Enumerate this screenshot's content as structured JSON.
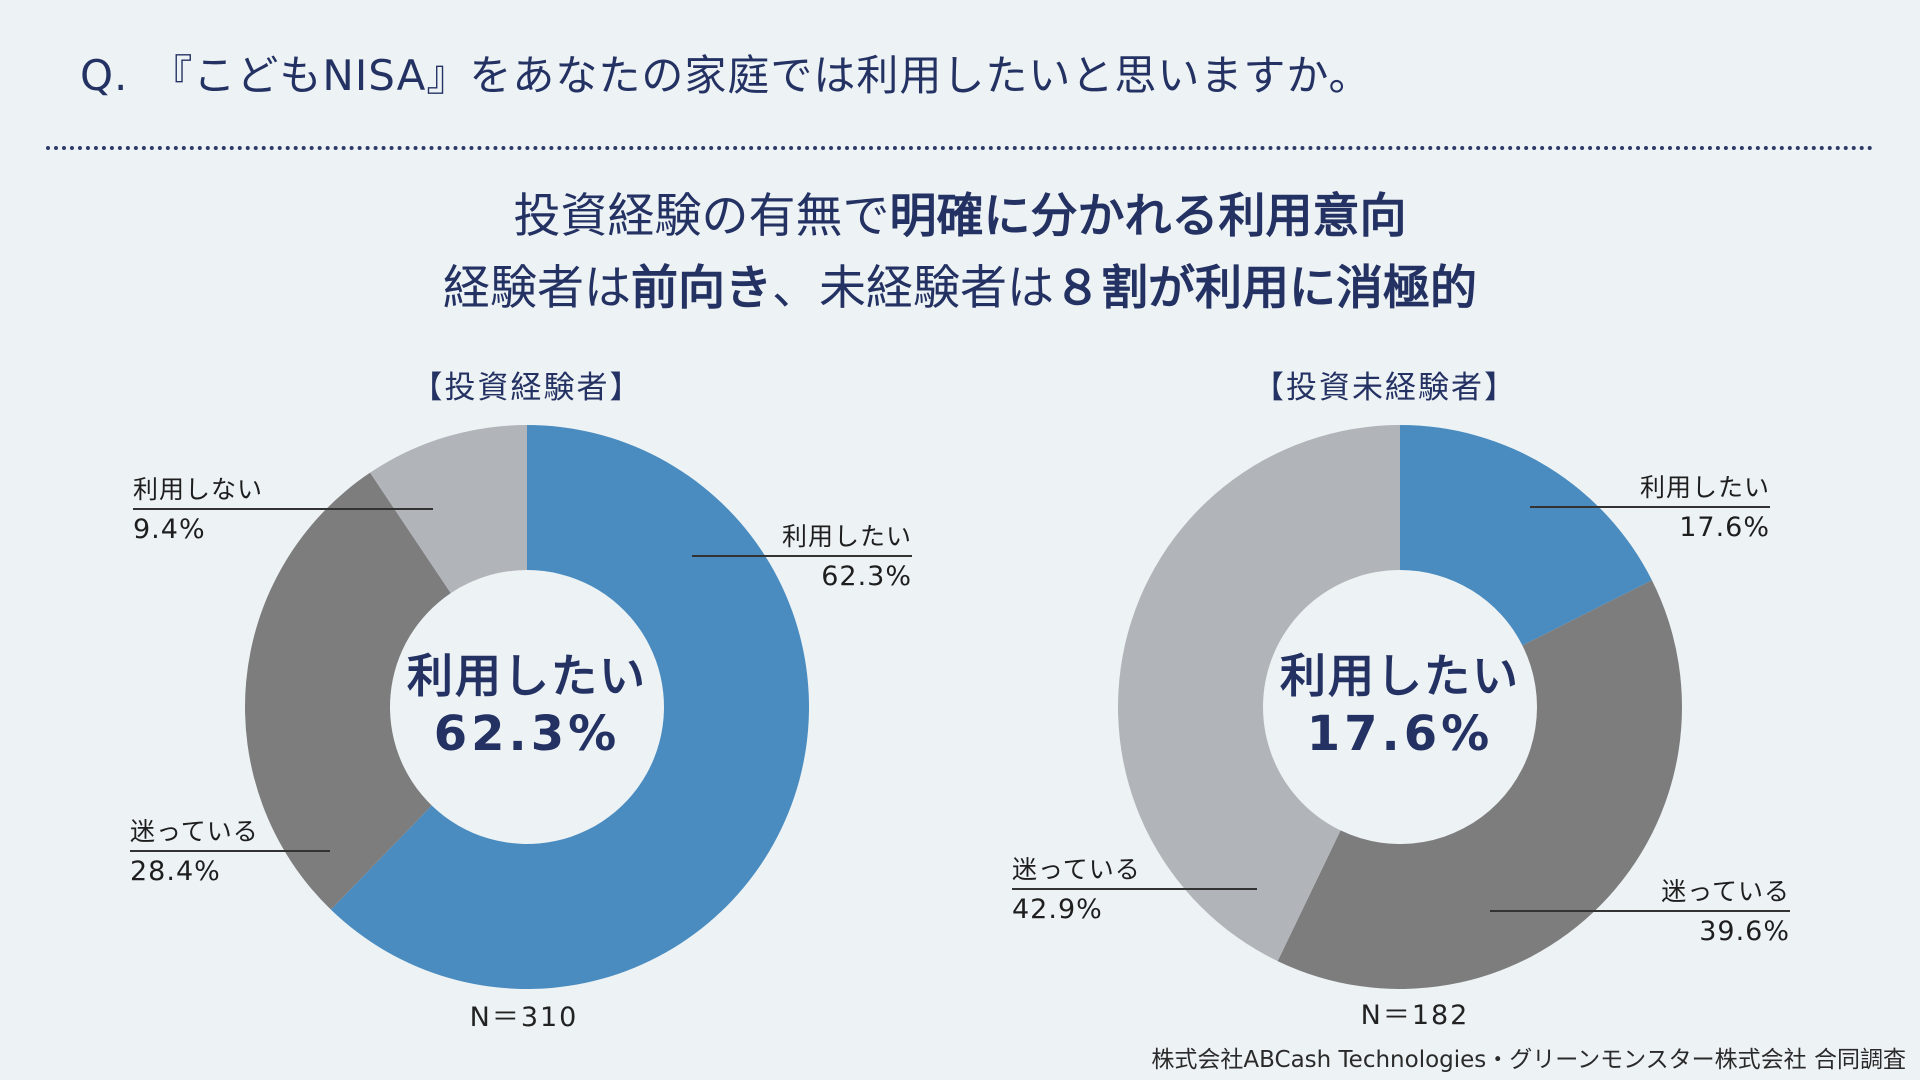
{
  "page": {
    "background_color": "#EDF2F4",
    "question": "Q.　『こどもNISA』をあなたの家庭では利用したいと思いますか。",
    "footer_credit": "株式会社ABCash Technologies・グリーンモンスター株式会社 合同調査"
  },
  "headline": {
    "line1": [
      {
        "text": "投資経験の有無で",
        "bold": false
      },
      {
        "text": "明確に分かれる利用意向",
        "bold": true
      }
    ],
    "line2": [
      {
        "text": "経験者は",
        "bold": false
      },
      {
        "text": "前向き",
        "bold": true
      },
      {
        "text": "、未経験者は",
        "bold": false
      },
      {
        "text": "８割が利用に消極的",
        "bold": true
      }
    ]
  },
  "colors": {
    "navy_text": "#243263",
    "blue_slice": "#4A8CC0",
    "dark_gray_slice": "#7D7D7D",
    "light_gray_slice": "#B1B5BA",
    "leader_line": "#333333",
    "label_text": "#1E1E1E"
  },
  "chart_data": [
    {
      "type": "pie",
      "variant": "donut",
      "title": "【投資経験者】",
      "n_label": "N＝310",
      "unit": "%",
      "center_label": {
        "line1": "利用したい",
        "line2": "62.3%"
      },
      "slices": [
        {
          "label": "利用したい",
          "value": 62.3,
          "pct_label": "62.3%",
          "color": "#4A8CC0"
        },
        {
          "label": "迷っている",
          "value": 28.4,
          "pct_label": "28.4%",
          "color": "#7D7D7D"
        },
        {
          "label": "利用しない",
          "value": 9.4,
          "pct_label": "9.4%",
          "color": "#B1B5BA"
        }
      ]
    },
    {
      "type": "pie",
      "variant": "donut",
      "title": "【投資未経験者】",
      "n_label": "N＝182",
      "unit": "%",
      "center_label": {
        "line1": "利用したい",
        "line2": "17.6%"
      },
      "slices": [
        {
          "label": "利用したい",
          "value": 17.6,
          "pct_label": "17.6%",
          "color": "#4A8CC0"
        },
        {
          "label": "迷っている",
          "value": 39.6,
          "pct_label": "39.6%",
          "color": "#7D7D7D"
        },
        {
          "label": "迷っている",
          "value": 42.9,
          "pct_label": "42.9%",
          "color": "#B1B5BA"
        }
      ]
    }
  ]
}
